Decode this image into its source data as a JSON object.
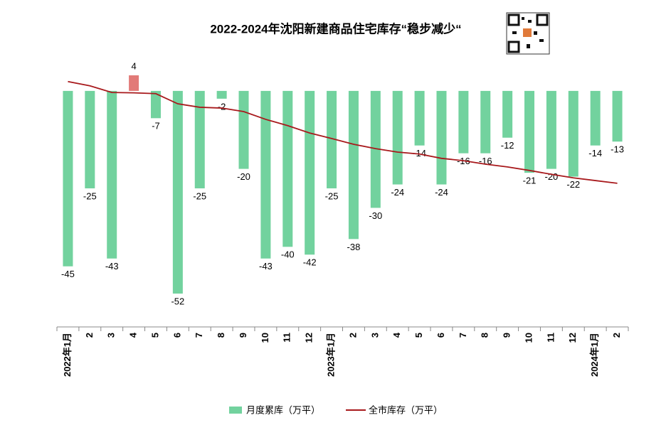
{
  "chart_data": {
    "type": "bar",
    "title": "2022-2024年沈阳新建商品住宅库存“稳步减少“",
    "categories": [
      "2022年1月",
      "2",
      "3",
      "4",
      "5",
      "6",
      "7",
      "8",
      "9",
      "10",
      "11",
      "12",
      "2023年1月",
      "2",
      "3",
      "4",
      "5",
      "6",
      "7",
      "8",
      "9",
      "10",
      "11",
      "12",
      "2024年1月",
      "2"
    ],
    "series": [
      {
        "name": "月度累库（万平）",
        "type": "bar",
        "color": "#72d29e",
        "positive_color": "#e27a78",
        "values": [
          -45,
          -25,
          -43,
          4,
          -7,
          -52,
          -25,
          -2,
          -20,
          -43,
          -40,
          -42,
          -25,
          -38,
          -30,
          -24,
          -14,
          -24,
          -16,
          -16,
          -12,
          -21,
          -20,
          -22,
          -14,
          -13
        ]
      },
      {
        "name": "全市库存（万平）",
        "type": "line",
        "color": "#a8191c",
        "values": [
          2.4,
          1.3,
          -0.4,
          -0.5,
          -0.7,
          -3.3,
          -4.2,
          -4.4,
          -5.3,
          -7.3,
          -8.9,
          -10.8,
          -12.2,
          -13.7,
          -14.8,
          -15.7,
          -16.2,
          -17.3,
          -17.9,
          -18.8,
          -19.5,
          -20.4,
          -21.4,
          -22.3,
          -23,
          -23.7
        ]
      }
    ],
    "ylim": [
      -60,
      6
    ],
    "legend": "bottom"
  }
}
